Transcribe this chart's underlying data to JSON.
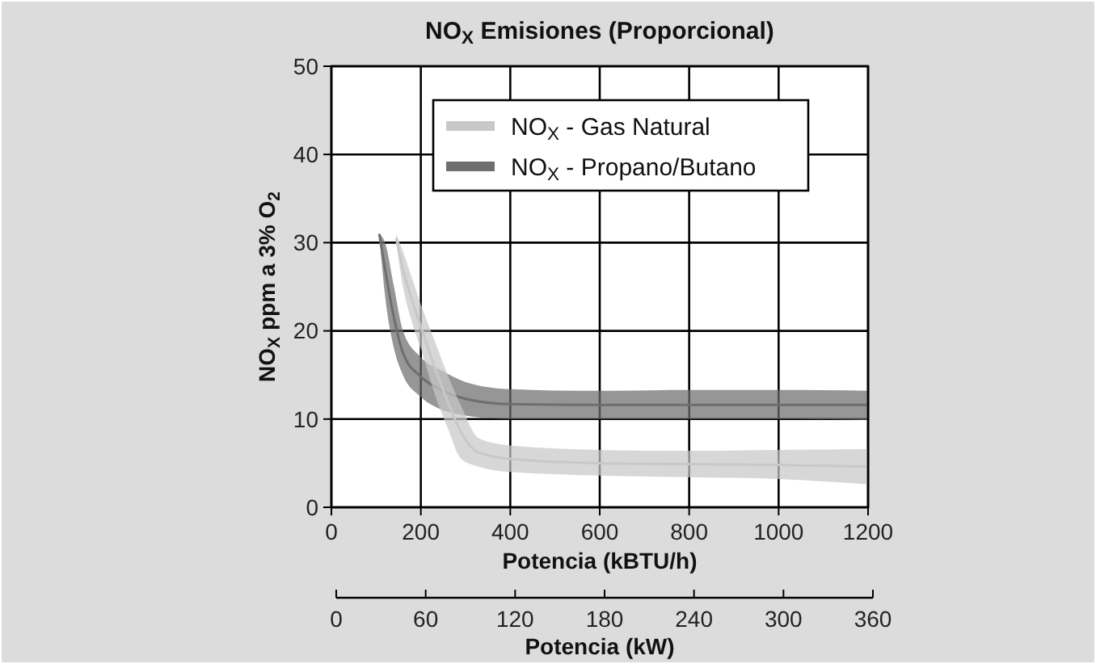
{
  "chart_data": {
    "type": "line",
    "title": "NO$_{X}$ Emisiones (Proporcional)",
    "xlabel": "Potencia (kBTU/h)",
    "ylabel": "NO$_{X}$ ppm a 3% O$_{2}$",
    "x2label": "Potencia (kW)",
    "xlim": [
      0,
      1200
    ],
    "xticks": [
      0,
      200,
      400,
      600,
      800,
      1000,
      1200
    ],
    "ylim": [
      0,
      50
    ],
    "yticks": [
      0,
      10,
      20,
      30,
      40,
      50
    ],
    "x2lim": [
      0,
      360
    ],
    "x2ticks": [
      0,
      60,
      120,
      180,
      240,
      300,
      360
    ],
    "grid": true,
    "legend": "top",
    "series": [
      {
        "name": "NO$_{X}$ - Gas Natural",
        "color": "#c8c8c8",
        "x": [
          145,
          160,
          180,
          200,
          230,
          260,
          290,
          330,
          400,
          600,
          800,
          1000,
          1200
        ],
        "values": [
          30.5,
          27,
          23.5,
          20.5,
          16,
          12,
          8.5,
          6.2,
          5.5,
          5,
          4.9,
          4.8,
          4.6
        ],
        "lower": [
          30,
          25,
          21,
          18,
          13,
          9,
          5.5,
          4.6,
          4,
          3.6,
          3.4,
          3.2,
          2.6
        ],
        "upper": [
          31,
          29,
          26,
          23,
          19,
          15,
          11.5,
          7.8,
          7,
          6.5,
          6.4,
          6.5,
          6.6
        ]
      },
      {
        "name": "NO$_{X}$ - Propano/Butano",
        "color": "#6e6e6e",
        "x": [
          107,
          120,
          140,
          160,
          200,
          250,
          300,
          400,
          600,
          800,
          1000,
          1200
        ],
        "values": [
          31,
          27,
          21.5,
          17.5,
          14.8,
          13.2,
          12.3,
          11.7,
          11.6,
          11.6,
          11.6,
          11.6
        ],
        "lower": [
          31,
          24,
          18,
          15,
          12.5,
          11,
          10.4,
          10,
          10,
          10,
          10,
          9.9
        ],
        "upper": [
          31,
          30,
          25,
          20,
          17,
          15.4,
          14.2,
          13.4,
          13.2,
          13.3,
          13.3,
          13.2
        ]
      }
    ]
  }
}
